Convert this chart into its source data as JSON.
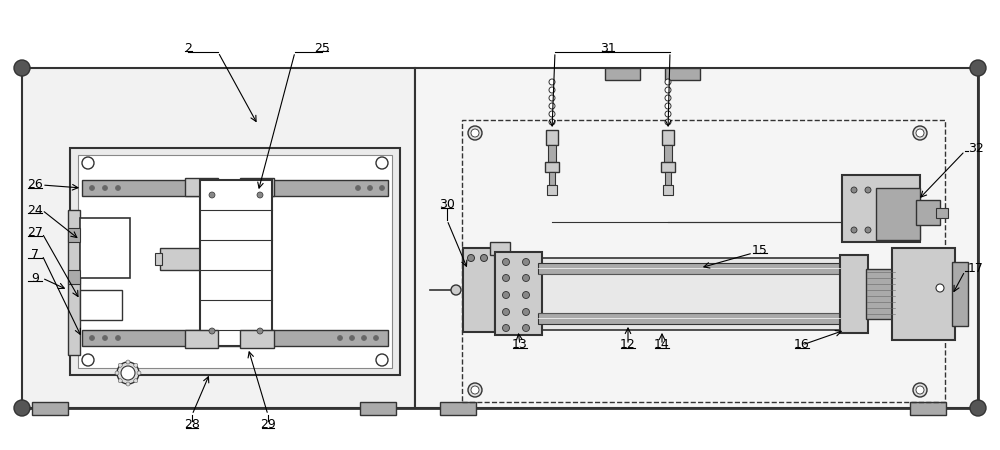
{
  "bg_color": "#ffffff",
  "line_color": "#333333",
  "gray1": "#aaaaaa",
  "gray2": "#cccccc",
  "gray3": "#e8e8e8",
  "gray4": "#888888",
  "gray5": "#666666",
  "fs": 9
}
